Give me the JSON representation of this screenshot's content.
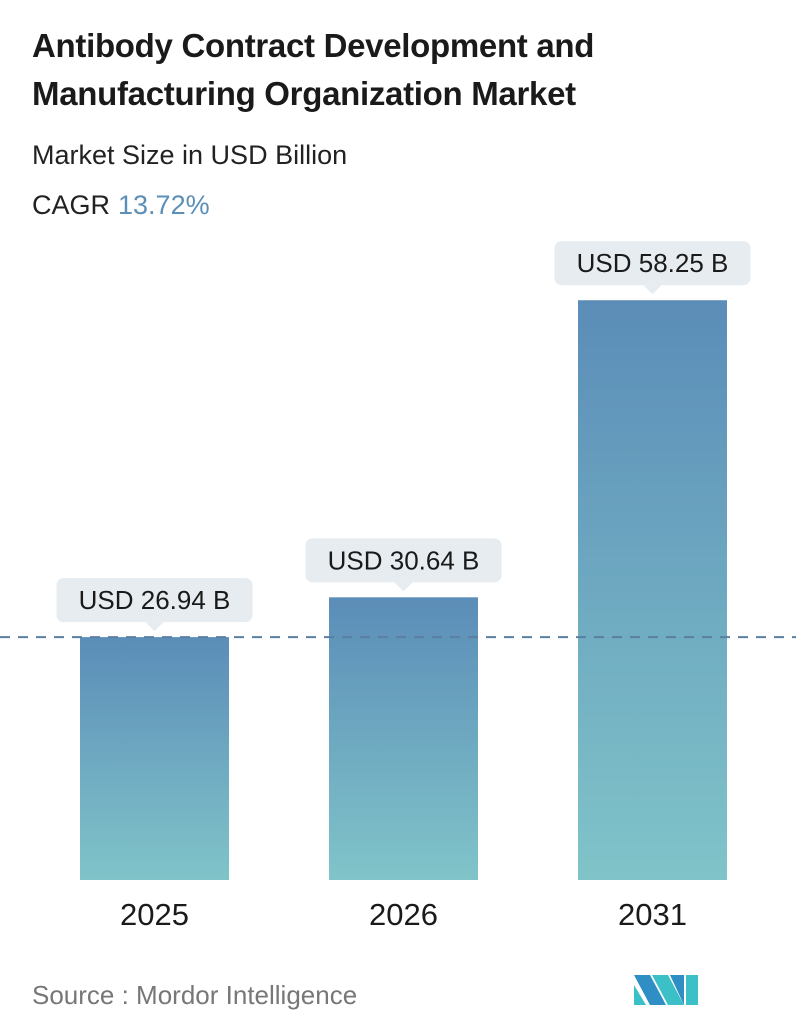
{
  "title": "Antibody Contract Development and Manufacturing Organization Market",
  "subtitle": "Market Size in USD Billion",
  "cagr_label": "CAGR",
  "cagr_value": "13.72%",
  "source": "Source :  Mordor Intelligence",
  "colors": {
    "bar_top": "#5b8db8",
    "bar_bottom": "#80c4c9",
    "accent": "#5b8fb8",
    "callout": "#e6ecf0"
  },
  "chart_data": {
    "type": "bar",
    "categories": [
      "2025",
      "2026",
      "2031"
    ],
    "values": [
      26.94,
      30.64,
      58.25
    ],
    "data_labels": [
      "USD 26.94 B",
      "USD 30.64 B",
      "USD 58.25 B"
    ],
    "reference_line": {
      "value": 26.94,
      "style": "dashed"
    },
    "grid": false
  }
}
